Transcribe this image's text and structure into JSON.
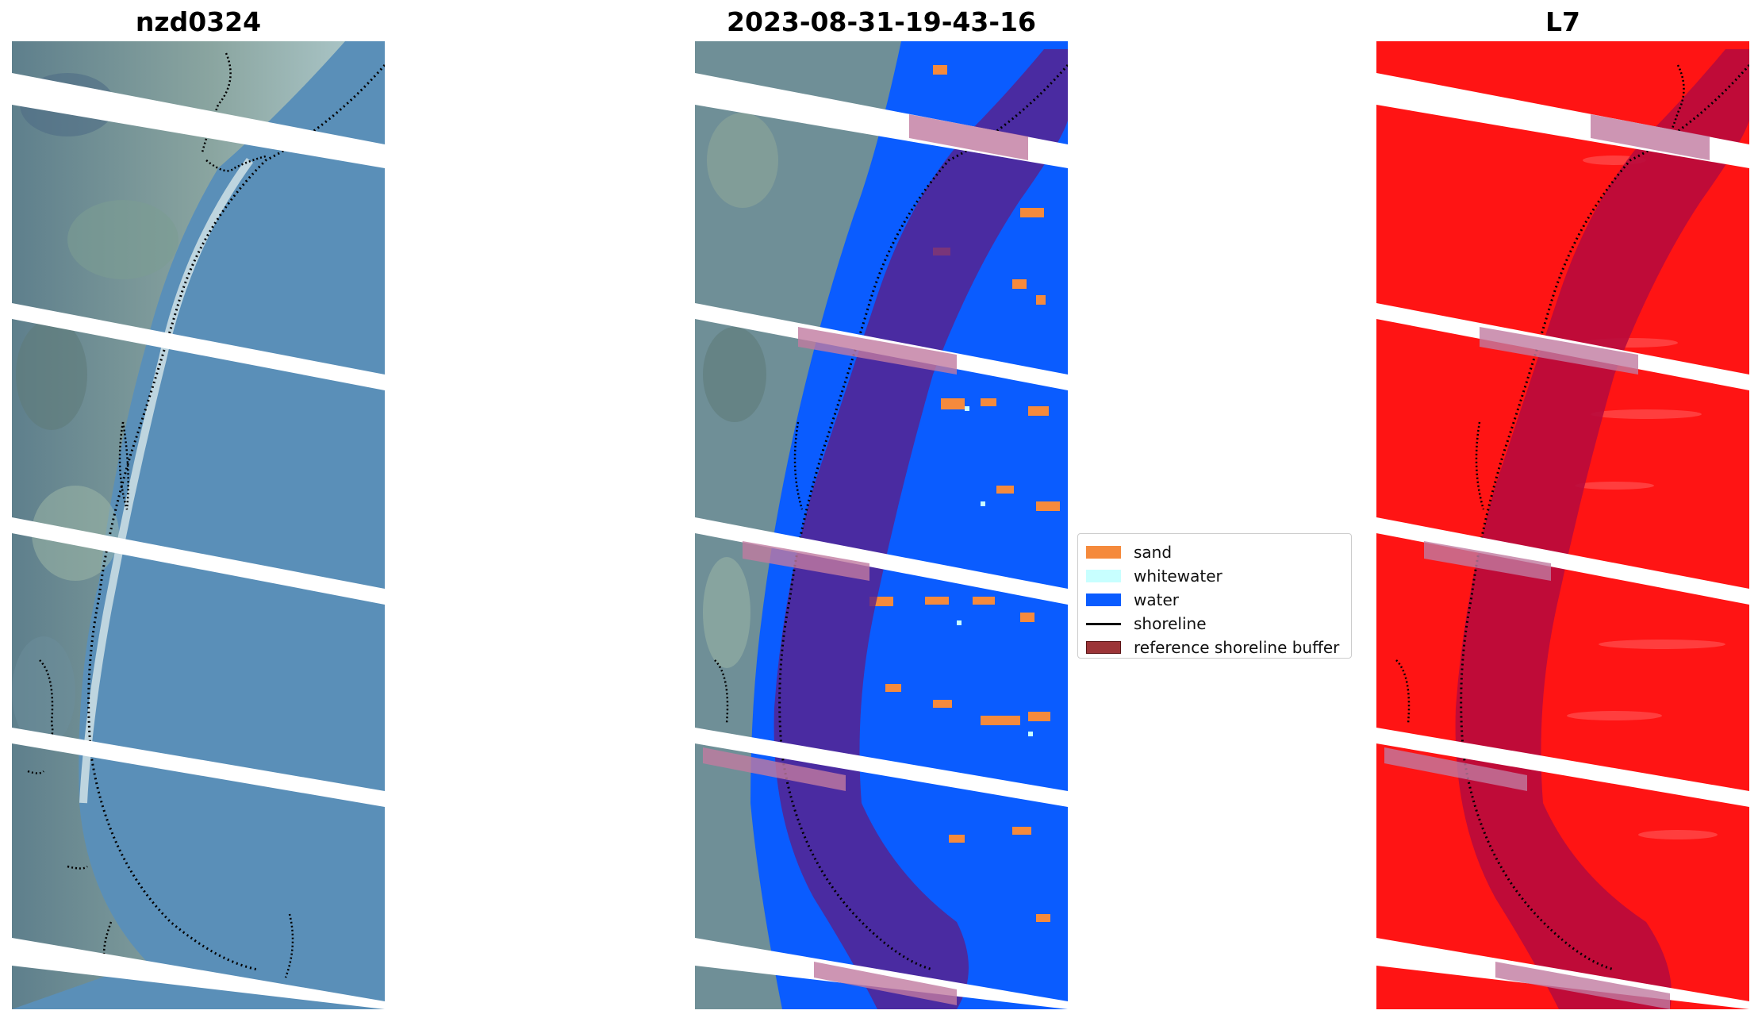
{
  "panels": [
    {
      "title": "nzd0324"
    },
    {
      "title": "2023-08-31-19-43-16"
    },
    {
      "title": "L7"
    }
  ],
  "legend": {
    "items": [
      {
        "label": "sand",
        "color": "#f58a3c",
        "kind": "patch"
      },
      {
        "label": "whitewater",
        "color": "#c8ffff",
        "kind": "patch"
      },
      {
        "label": "water",
        "color": "#0a5cff",
        "kind": "patch"
      },
      {
        "label": "shoreline",
        "color": "#000000",
        "kind": "line"
      },
      {
        "label": "reference shoreline buffer",
        "color": "#9c3437",
        "kind": "patch"
      }
    ]
  },
  "colors": {
    "water_rgb": "#5a8fb8",
    "land_rgb": "#6f8f97",
    "class_water": "#0a5cff",
    "class_sand": "#f58a3c",
    "buffer_overlay": "#5a1f8a",
    "l7_red": "#ff1414",
    "l7_buffer": "#b80a3c",
    "gap_stripe": "#ffffff"
  }
}
